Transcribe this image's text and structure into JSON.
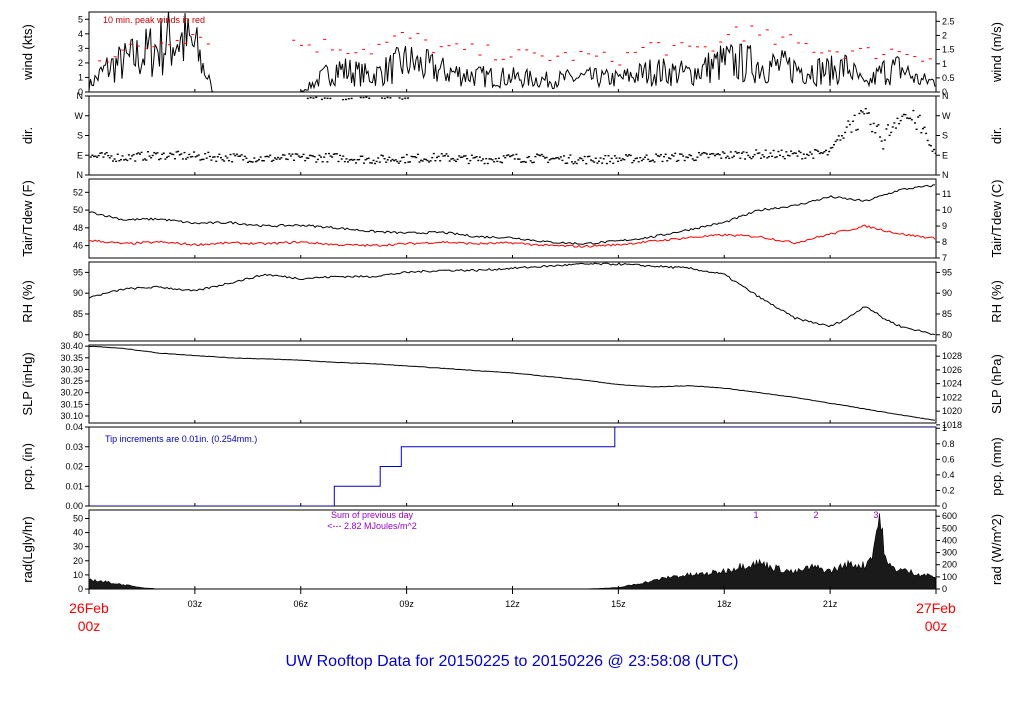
{
  "title": "UW Rooftop Data for 20150225  to  20150226 @ 23:58:08  (UTC)",
  "colors": {
    "wind": "#000000",
    "gust": "#ff0000",
    "tdew": "#ff0000",
    "precip": "#0000cc",
    "annot_red": "#cc0000",
    "annot_purple": "#9900cc",
    "title": "#0000cc",
    "date_label": "#ff0000"
  },
  "x_axis": {
    "start_date": "26Feb",
    "start_time": "00z",
    "end_date": "27Feb",
    "end_time": "00z",
    "hours": [
      0,
      3,
      6,
      9,
      12,
      15,
      18,
      21,
      24
    ],
    "tick_labels": [
      "",
      "03z",
      "06z",
      "09z",
      "12z",
      "15z",
      "18z",
      "21z",
      ""
    ]
  },
  "chart_data": [
    {
      "id": "wind",
      "type": "line",
      "ylabel_left": "wind (kts)",
      "ylabel_right": "wind (m/s)",
      "ylim": [
        0,
        5.5
      ],
      "yticks_left": [
        0,
        1,
        2,
        3,
        4,
        5
      ],
      "yticks_right": [
        {
          "label": "0",
          "v": 0
        },
        {
          "label": "0.5",
          "v": 0.97
        },
        {
          "label": "1",
          "v": 1.94
        },
        {
          "label": "1.5",
          "v": 2.92
        },
        {
          "label": "2",
          "v": 3.89
        },
        {
          "label": "2.5",
          "v": 4.86
        }
      ],
      "annotation": "10 min. peak winds in red",
      "series": [
        {
          "name": "wind",
          "x": [
            0,
            0.5,
            1,
            1.5,
            2,
            2.5,
            3,
            3.4,
            3.5,
            6,
            7,
            8,
            9,
            10,
            11,
            12,
            13,
            14,
            15,
            16,
            17,
            18,
            19,
            20,
            21,
            21.5,
            22,
            22.5,
            23,
            23.5,
            24
          ],
          "y": [
            0.5,
            1.8,
            2.3,
            2.8,
            3.5,
            4.1,
            3.4,
            0.9,
            0,
            0,
            1.8,
            1.2,
            2.3,
            1.6,
            1.2,
            1.1,
            0.9,
            1.1,
            1.0,
            1.6,
            1.4,
            2.3,
            2.1,
            1.8,
            1.6,
            1.9,
            0.5,
            1.6,
            1.8,
            0.9,
            0.8
          ]
        },
        {
          "name": "gust",
          "x": [
            0.5,
            1,
            1.5,
            2,
            2.5,
            3,
            5,
            6,
            7,
            8,
            9,
            10,
            11,
            12,
            13,
            14,
            15,
            16,
            17,
            18,
            18.3,
            19,
            20,
            21,
            22,
            23,
            24
          ],
          "y": [
            2.6,
            3.0,
            3.3,
            3.7,
            4.4,
            4.3,
            3.9,
            3.6,
            3.4,
            3.2,
            4.1,
            3.2,
            3.0,
            2.8,
            2.6,
            2.7,
            2.4,
            3.5,
            3.0,
            3.6,
            5.0,
            4.0,
            3.6,
            3.1,
            2.9,
            3.1,
            2.5
          ]
        }
      ]
    },
    {
      "id": "dir",
      "type": "scatter",
      "ylabel_left": "dir.",
      "ylabel_right": "dir.",
      "ylim": [
        0,
        360
      ],
      "yticks_left": [
        {
          "label": "N",
          "v": 0
        },
        {
          "label": "E",
          "v": 90
        },
        {
          "label": "S",
          "v": 180
        },
        {
          "label": "W",
          "v": 270
        },
        {
          "label": "N",
          "v": 360
        }
      ],
      "yticks_right": [
        {
          "label": "N",
          "v": 0
        },
        {
          "label": "E",
          "v": 90
        },
        {
          "label": "S",
          "v": 180
        },
        {
          "label": "W",
          "v": 270
        },
        {
          "label": "N",
          "v": 360
        }
      ],
      "series": [
        {
          "name": "direction",
          "x": [
            0,
            1,
            2,
            3,
            4,
            5,
            6,
            7,
            8,
            9,
            10,
            11,
            12,
            13,
            14,
            15,
            16,
            17,
            18,
            19,
            20,
            21,
            21.5,
            22,
            22.5,
            23,
            23.5,
            24
          ],
          "y": [
            85,
            80,
            90,
            85,
            80,
            75,
            78,
            80,
            70,
            75,
            80,
            70,
            78,
            75,
            70,
            72,
            78,
            82,
            90,
            95,
            92,
            100,
            230,
            260,
            160,
            280,
            240,
            90
          ]
        },
        {
          "name": "direction_north",
          "x": [
            6.2,
            6.6,
            7.2,
            7.7,
            8.3,
            8.8
          ],
          "y": [
            350,
            348,
            345,
            352,
            350,
            348
          ]
        }
      ]
    },
    {
      "id": "temp",
      "type": "line",
      "ylabel_left": "Tair/Tdew (F)",
      "ylabel_right": "Tair/Tdew (C)",
      "ylim": [
        44.6,
        53.5
      ],
      "yticks_left": [
        46,
        48,
        50,
        52
      ],
      "yticks_right": [
        {
          "label": "7",
          "v": 44.6
        },
        {
          "label": "8",
          "v": 46.4
        },
        {
          "label": "9",
          "v": 48.2
        },
        {
          "label": "10",
          "v": 50.0
        },
        {
          "label": "11",
          "v": 51.8
        }
      ],
      "series": [
        {
          "name": "Tair",
          "x": [
            0,
            1,
            2,
            3,
            4,
            5,
            6,
            7,
            8,
            9,
            10,
            11,
            12,
            13,
            14,
            15,
            16,
            17,
            18,
            19,
            20,
            21,
            22,
            23,
            24
          ],
          "y": [
            49.8,
            48.9,
            49.0,
            48.5,
            48.6,
            48.2,
            48.3,
            48.0,
            47.6,
            47.4,
            47.5,
            47.0,
            46.9,
            46.4,
            46.2,
            46.5,
            47.0,
            47.8,
            48.6,
            50.0,
            50.5,
            51.5,
            51.0,
            52.3,
            52.8
          ]
        },
        {
          "name": "Tdew",
          "x": [
            0,
            1,
            2,
            3,
            4,
            5,
            6,
            7,
            8,
            9,
            10,
            11,
            12,
            13,
            14,
            15,
            16,
            17,
            18,
            19,
            20,
            21,
            22,
            23,
            24
          ],
          "y": [
            46.6,
            46.2,
            46.4,
            46.1,
            46.3,
            46.2,
            46.4,
            46.1,
            46.0,
            46.2,
            46.4,
            46.2,
            46.3,
            46.0,
            45.9,
            46.1,
            46.5,
            46.9,
            47.2,
            47.0,
            46.3,
            47.3,
            48.2,
            47.3,
            46.8
          ]
        }
      ]
    },
    {
      "id": "rh",
      "type": "line",
      "ylabel_left": "RH (%)",
      "ylabel_right": "RH (%)",
      "ylim": [
        78.5,
        97.5
      ],
      "yticks_left": [
        80,
        85,
        90,
        95
      ],
      "yticks_right": [
        {
          "label": "80",
          "v": 80
        },
        {
          "label": "85",
          "v": 85
        },
        {
          "label": "90",
          "v": 90
        },
        {
          "label": "95",
          "v": 95
        }
      ],
      "series": [
        {
          "name": "RH",
          "x": [
            0,
            1,
            2,
            3,
            4,
            5,
            6,
            7,
            8,
            9,
            10,
            11,
            12,
            13,
            14,
            15,
            16,
            17,
            18,
            19,
            20,
            21,
            21.5,
            22,
            22.5,
            23,
            24
          ],
          "y": [
            89,
            91,
            91.5,
            90.5,
            92.5,
            94.5,
            93.5,
            94,
            94,
            95,
            95.5,
            95.5,
            96,
            96.5,
            97,
            97,
            96.5,
            96,
            94.5,
            89,
            84,
            82,
            84,
            87,
            84,
            82,
            80
          ]
        }
      ]
    },
    {
      "id": "slp",
      "type": "line",
      "ylabel_left": "SLP (inHg)",
      "ylabel_right": "SLP (hPa)",
      "ylim": [
        30.07,
        30.405
      ],
      "yticks_left": [
        30.1,
        30.15,
        30.2,
        30.25,
        30.3,
        30.35,
        30.4
      ],
      "yticks_left_labels": [
        "30.10",
        "30.15",
        "30.20",
        "30.25",
        "30.30",
        "30.35",
        "30.40"
      ],
      "yticks_right": [
        {
          "label": "1018",
          "v": 30.062
        },
        {
          "label": "1020",
          "v": 30.121
        },
        {
          "label": "1022",
          "v": 30.18
        },
        {
          "label": "1024",
          "v": 30.239
        },
        {
          "label": "1026",
          "v": 30.298
        },
        {
          "label": "1028",
          "v": 30.357
        }
      ],
      "series": [
        {
          "name": "SLP",
          "x": [
            0,
            1,
            2,
            3,
            4,
            5,
            6,
            7,
            8,
            9,
            10,
            11,
            12,
            13,
            14,
            15,
            16,
            17,
            18,
            19,
            20,
            21,
            22,
            23,
            24
          ],
          "y": [
            30.4,
            30.39,
            30.37,
            30.36,
            30.35,
            30.345,
            30.34,
            30.33,
            30.325,
            30.315,
            30.305,
            30.295,
            30.285,
            30.27,
            30.255,
            30.235,
            30.225,
            30.23,
            30.22,
            30.2,
            30.18,
            30.155,
            30.13,
            30.105,
            30.08
          ]
        }
      ]
    },
    {
      "id": "pcp",
      "type": "line",
      "ylabel_left": "pcp. (in)",
      "ylabel_right": "pcp. (mm)",
      "ylim": [
        0,
        0.04
      ],
      "yticks_left": [
        0,
        0.01,
        0.02,
        0.03,
        0.04
      ],
      "yticks_left_labels": [
        "0.00",
        "0.01",
        "0.02",
        "0.03",
        "0.04"
      ],
      "yticks_right": [
        {
          "label": "0",
          "v": 0
        },
        {
          "label": "0.2",
          "v": 0.00787
        },
        {
          "label": "0.4",
          "v": 0.01575
        },
        {
          "label": "0.6",
          "v": 0.02362
        },
        {
          "label": "0.8",
          "v": 0.0315
        },
        {
          "label": "1",
          "v": 0.03937
        }
      ],
      "annotation": "Tip increments are 0.01in. (0.254mm.)",
      "series": [
        {
          "name": "precip",
          "x": [
            0,
            6.95,
            6.95,
            8.25,
            8.25,
            8.85,
            8.85,
            14.9,
            14.9,
            24
          ],
          "y": [
            0,
            0,
            0.01,
            0.01,
            0.02,
            0.02,
            0.03,
            0.03,
            0.04,
            0.04
          ]
        }
      ]
    },
    {
      "id": "rad",
      "type": "area",
      "ylabel_left": "rad(Lgly/hr)",
      "ylabel_right": "rad (W/m^2)",
      "ylim": [
        0,
        56
      ],
      "yticks_left": [
        0,
        10,
        20,
        30,
        40,
        50
      ],
      "yticks_right": [
        {
          "label": "0",
          "v": 0
        },
        {
          "label": "100",
          "v": 8.6
        },
        {
          "label": "200",
          "v": 17.2
        },
        {
          "label": "300",
          "v": 25.8
        },
        {
          "label": "400",
          "v": 34.4
        },
        {
          "label": "500",
          "v": 43.0
        },
        {
          "label": "600",
          "v": 51.6
        }
      ],
      "annotation_line1": "Sum of previous day",
      "annotation_line2": "<--- 2.82 MJoules/m^2",
      "markers": [
        {
          "label": "1",
          "x": 18.9
        },
        {
          "label": "2",
          "x": 20.6
        },
        {
          "label": "3",
          "x": 22.3
        }
      ],
      "series": [
        {
          "name": "radiation",
          "x": [
            0,
            0.5,
            1,
            1.5,
            2,
            14,
            15,
            16,
            16.5,
            17,
            17.5,
            18,
            18.5,
            19,
            19.5,
            20,
            20.5,
            21,
            21.5,
            22,
            22.2,
            22.4,
            22.6,
            22.8,
            23,
            23.5,
            24
          ],
          "y": [
            7,
            5,
            3,
            1,
            0,
            0,
            1,
            6,
            9,
            10,
            11,
            13,
            17,
            19,
            15,
            12,
            16,
            13,
            18,
            17,
            26,
            53,
            18,
            15,
            14,
            11,
            9
          ]
        }
      ]
    }
  ]
}
